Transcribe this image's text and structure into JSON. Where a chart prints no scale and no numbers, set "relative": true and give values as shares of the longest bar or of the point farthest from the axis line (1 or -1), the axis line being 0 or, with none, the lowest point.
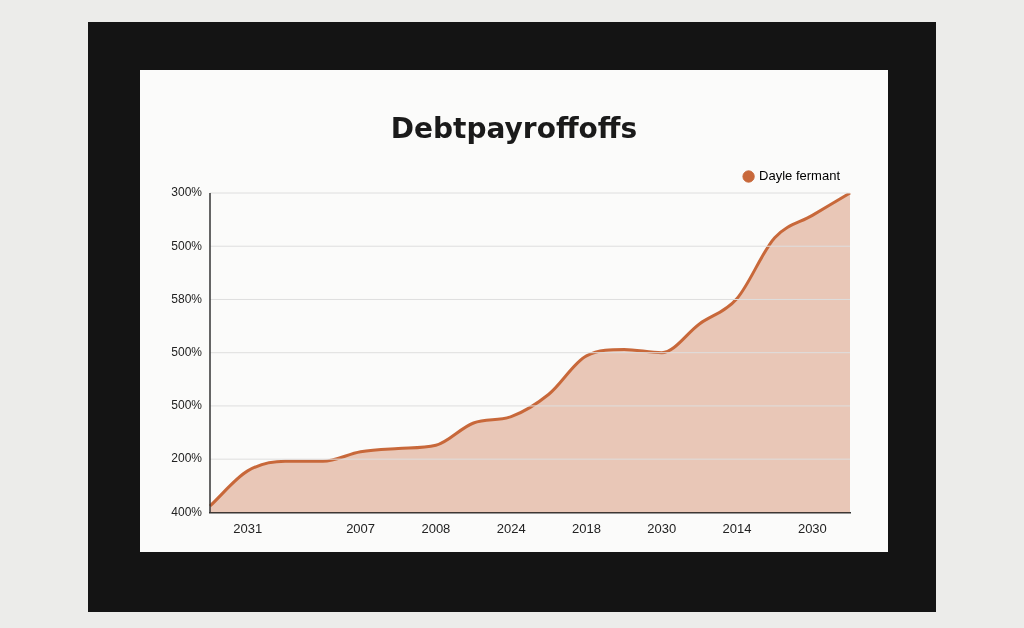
{
  "chart_data": {
    "type": "area",
    "title": "Debtpayroffoffs",
    "categories": [
      null,
      "2031",
      null,
      null,
      "2007",
      null,
      "2008",
      null,
      "2024",
      null,
      "2018",
      null,
      "2030",
      null,
      "2014",
      null,
      "2030",
      null
    ],
    "series": [
      {
        "name": "Dayle fermant",
        "color": "#c8683a",
        "values": [
          0.02,
          0.13,
          0.16,
          0.16,
          0.19,
          0.2,
          0.21,
          0.28,
          0.3,
          0.37,
          0.49,
          0.51,
          0.5,
          0.59,
          0.67,
          0.86,
          0.93,
          1
        ]
      }
    ],
    "relative": true,
    "annotations": [
      "300%",
      "500%",
      "580%",
      "500%",
      "500%",
      "200%",
      "400%"
    ],
    "legend": "top right",
    "marker": "none",
    "line_style": "solid"
  }
}
